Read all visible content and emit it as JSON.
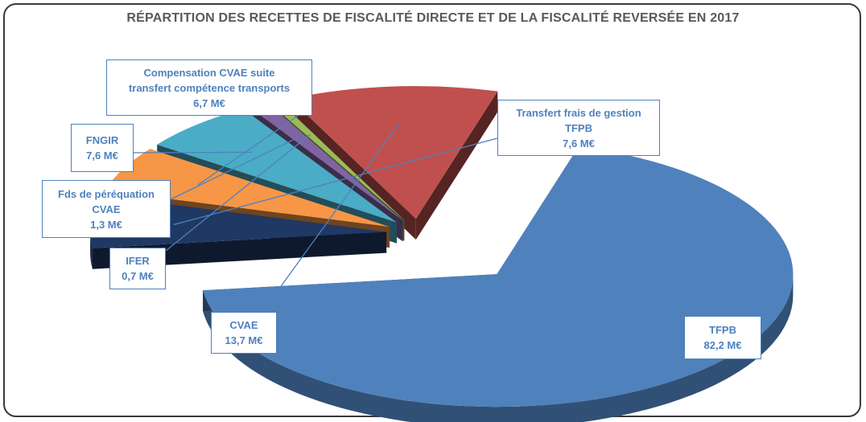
{
  "chart_data": {
    "type": "pie",
    "title": "RÉPARTITION DES RECETTES DE FISCALITÉ DIRECTE ET DE LA FISCALITÉ REVERSÉE EN 2017",
    "unit": "M€",
    "slices": [
      {
        "label": "TFPB",
        "value": 82.2,
        "display": "82,2 M€",
        "color": "#4f81bd"
      },
      {
        "label": "Transfert frais de gestion TFPB",
        "value": 7.6,
        "display": "7,6 M€",
        "color": "#1f3864"
      },
      {
        "label": "Compensation CVAE suite transfert compétence transports",
        "value": 6.7,
        "display": "6,7 M€",
        "color": "#f79646"
      },
      {
        "label": "FNGIR",
        "value": 7.6,
        "display": "7,6 M€",
        "color": "#4bacc6"
      },
      {
        "label": "Fds de péréquation CVAE",
        "value": 1.3,
        "display": "1,3 M€",
        "color": "#8064a2"
      },
      {
        "label": "IFER",
        "value": 0.7,
        "display": "0,7 M€",
        "color": "#9bbb59"
      },
      {
        "label": "CVAE",
        "value": 13.7,
        "display": "13,7 M€",
        "color": "#c0504d"
      }
    ]
  },
  "callouts": {
    "tfpb": {
      "line1": "TFPB",
      "line2": "82,2 M€"
    },
    "transfert": {
      "line1": "Transfert frais de gestion",
      "line2": "TFPB",
      "line3": "7,6 M€"
    },
    "compensation": {
      "line1": "Compensation CVAE suite",
      "line2": "transfert compétence transports",
      "line3": "6,7 M€"
    },
    "fngir": {
      "line1": "FNGIR",
      "line2": "7,6 M€"
    },
    "fds": {
      "line1": "Fds de péréquation",
      "line2": "CVAE",
      "line3": "1,3 M€"
    },
    "ifer": {
      "line1": "IFER",
      "line2": "0,7 M€"
    },
    "cvae": {
      "line1": "CVAE",
      "line2": "13,7 M€"
    }
  }
}
